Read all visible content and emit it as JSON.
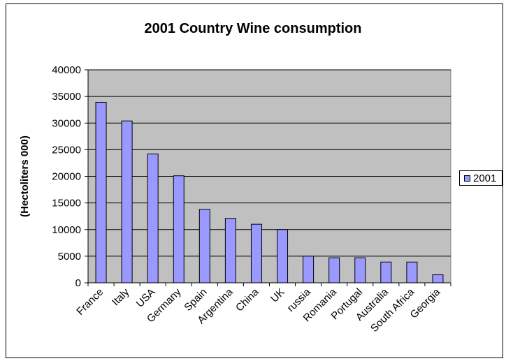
{
  "chart_data": {
    "type": "bar",
    "title": "2001 Country Wine consumption",
    "xlabel": "",
    "ylabel": "(Hectoliters 000)",
    "ylim": [
      0,
      40000
    ],
    "yticks": [
      0,
      5000,
      10000,
      15000,
      20000,
      25000,
      30000,
      35000,
      40000
    ],
    "grid": true,
    "legend_position": "right",
    "categories": [
      "France",
      "Italy",
      "USA",
      "Germany",
      "Spain",
      "Argentina",
      "China",
      "UK",
      "russia",
      "Romania",
      "Portugal",
      "Australia",
      "South Africa",
      "Georgia"
    ],
    "series": [
      {
        "name": "2001",
        "color": "#9999ff",
        "values": [
          33900,
          30400,
          24200,
          20100,
          13800,
          12100,
          11000,
          10000,
          5000,
          4700,
          4700,
          3900,
          3900,
          1500
        ]
      }
    ],
    "plot_background": "#c0c0c0"
  }
}
